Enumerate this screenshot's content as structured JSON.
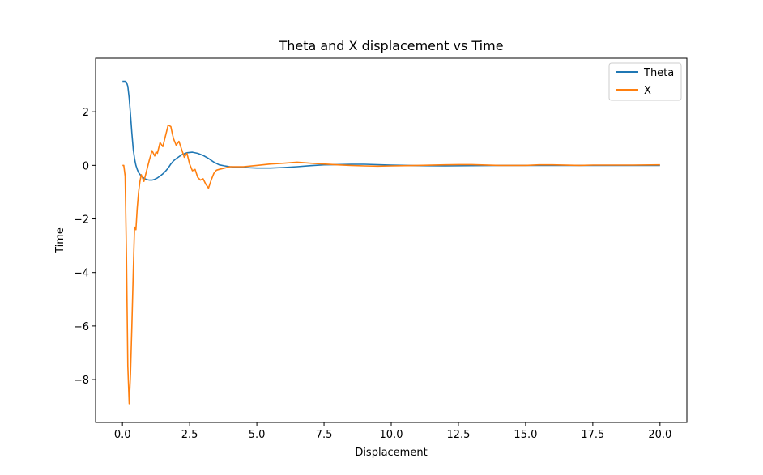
{
  "chart_data": {
    "type": "line",
    "title": "Theta and X displacement vs Time",
    "xlabel": "Displacement",
    "ylabel": "Time",
    "xlim": [
      -1.0,
      21.0
    ],
    "ylim": [
      -9.6,
      4.0
    ],
    "xticks": [
      0.0,
      2.5,
      5.0,
      7.5,
      10.0,
      12.5,
      15.0,
      17.5,
      20.0
    ],
    "xtick_labels": [
      "0.0",
      "2.5",
      "5.0",
      "7.5",
      "10.0",
      "12.5",
      "15.0",
      "17.5",
      "20.0"
    ],
    "yticks": [
      2,
      0,
      -2,
      -4,
      -6,
      -8
    ],
    "ytick_labels": [
      "2",
      "0",
      "−2",
      "−4",
      "−6",
      "−8"
    ],
    "grid": false,
    "legend_position": "top-right",
    "series": [
      {
        "name": "Theta",
        "color": "#1f77b4",
        "x": [
          0.0,
          0.1,
          0.15,
          0.2,
          0.25,
          0.3,
          0.35,
          0.4,
          0.45,
          0.5,
          0.55,
          0.6,
          0.7,
          0.8,
          0.9,
          1.0,
          1.1,
          1.2,
          1.3,
          1.4,
          1.5,
          1.6,
          1.7,
          1.8,
          1.9,
          2.0,
          2.2,
          2.4,
          2.6,
          2.8,
          3.0,
          3.2,
          3.4,
          3.6,
          3.8,
          4.0,
          4.5,
          5.0,
          5.5,
          6.0,
          6.5,
          7.0,
          7.5,
          8.0,
          8.5,
          9.0,
          10.0,
          11.0,
          12.0,
          13.0,
          14.0,
          15.0,
          16.0,
          17.0,
          18.0,
          19.0,
          20.0
        ],
        "y": [
          3.14,
          3.14,
          3.1,
          2.95,
          2.5,
          1.9,
          1.2,
          0.6,
          0.25,
          0.0,
          -0.15,
          -0.27,
          -0.4,
          -0.48,
          -0.53,
          -0.55,
          -0.55,
          -0.52,
          -0.47,
          -0.4,
          -0.32,
          -0.22,
          -0.1,
          0.05,
          0.17,
          0.25,
          0.39,
          0.47,
          0.49,
          0.45,
          0.37,
          0.26,
          0.12,
          0.02,
          -0.02,
          -0.05,
          -0.08,
          -0.1,
          -0.1,
          -0.08,
          -0.05,
          -0.01,
          0.02,
          0.03,
          0.04,
          0.04,
          0.01,
          -0.01,
          -0.02,
          -0.01,
          0.0,
          0.0,
          0.0,
          0.0,
          0.0,
          0.0,
          0.0
        ]
      },
      {
        "name": "X",
        "color": "#ff7f0e",
        "x": [
          0.0,
          0.05,
          0.1,
          0.15,
          0.2,
          0.25,
          0.3,
          0.35,
          0.4,
          0.45,
          0.5,
          0.55,
          0.6,
          0.65,
          0.7,
          0.8,
          0.9,
          1.0,
          1.1,
          1.2,
          1.25,
          1.3,
          1.4,
          1.5,
          1.6,
          1.7,
          1.8,
          1.85,
          1.9,
          2.0,
          2.1,
          2.2,
          2.3,
          2.4,
          2.5,
          2.6,
          2.7,
          2.8,
          2.9,
          3.0,
          3.1,
          3.2,
          3.3,
          3.4,
          3.5,
          3.6,
          3.8,
          4.0,
          4.5,
          5.0,
          5.5,
          6.0,
          6.5,
          7.0,
          7.5,
          8.0,
          8.5,
          9.0,
          9.5,
          10.0,
          11.0,
          12.0,
          12.5,
          13.0,
          14.0,
          15.0,
          15.5,
          16.0,
          17.0,
          17.5,
          18.0,
          19.0,
          20.0
        ],
        "y": [
          0.0,
          0.0,
          -0.4,
          -3.5,
          -7.5,
          -8.9,
          -7.8,
          -6.0,
          -4.0,
          -2.3,
          -2.4,
          -1.6,
          -1.0,
          -0.6,
          -0.35,
          -0.6,
          -0.2,
          0.2,
          0.55,
          0.35,
          0.5,
          0.45,
          0.85,
          0.7,
          1.1,
          1.5,
          1.45,
          1.2,
          1.0,
          0.75,
          0.9,
          0.6,
          0.3,
          0.45,
          0.05,
          -0.2,
          -0.15,
          -0.45,
          -0.55,
          -0.5,
          -0.7,
          -0.85,
          -0.55,
          -0.3,
          -0.18,
          -0.15,
          -0.1,
          -0.05,
          -0.05,
          0.0,
          0.05,
          0.08,
          0.12,
          0.08,
          0.05,
          0.02,
          0.0,
          -0.02,
          -0.03,
          -0.02,
          0.0,
          0.02,
          0.03,
          0.03,
          0.0,
          0.0,
          0.02,
          0.02,
          0.0,
          0.01,
          0.01,
          0.01,
          0.02
        ]
      }
    ]
  }
}
